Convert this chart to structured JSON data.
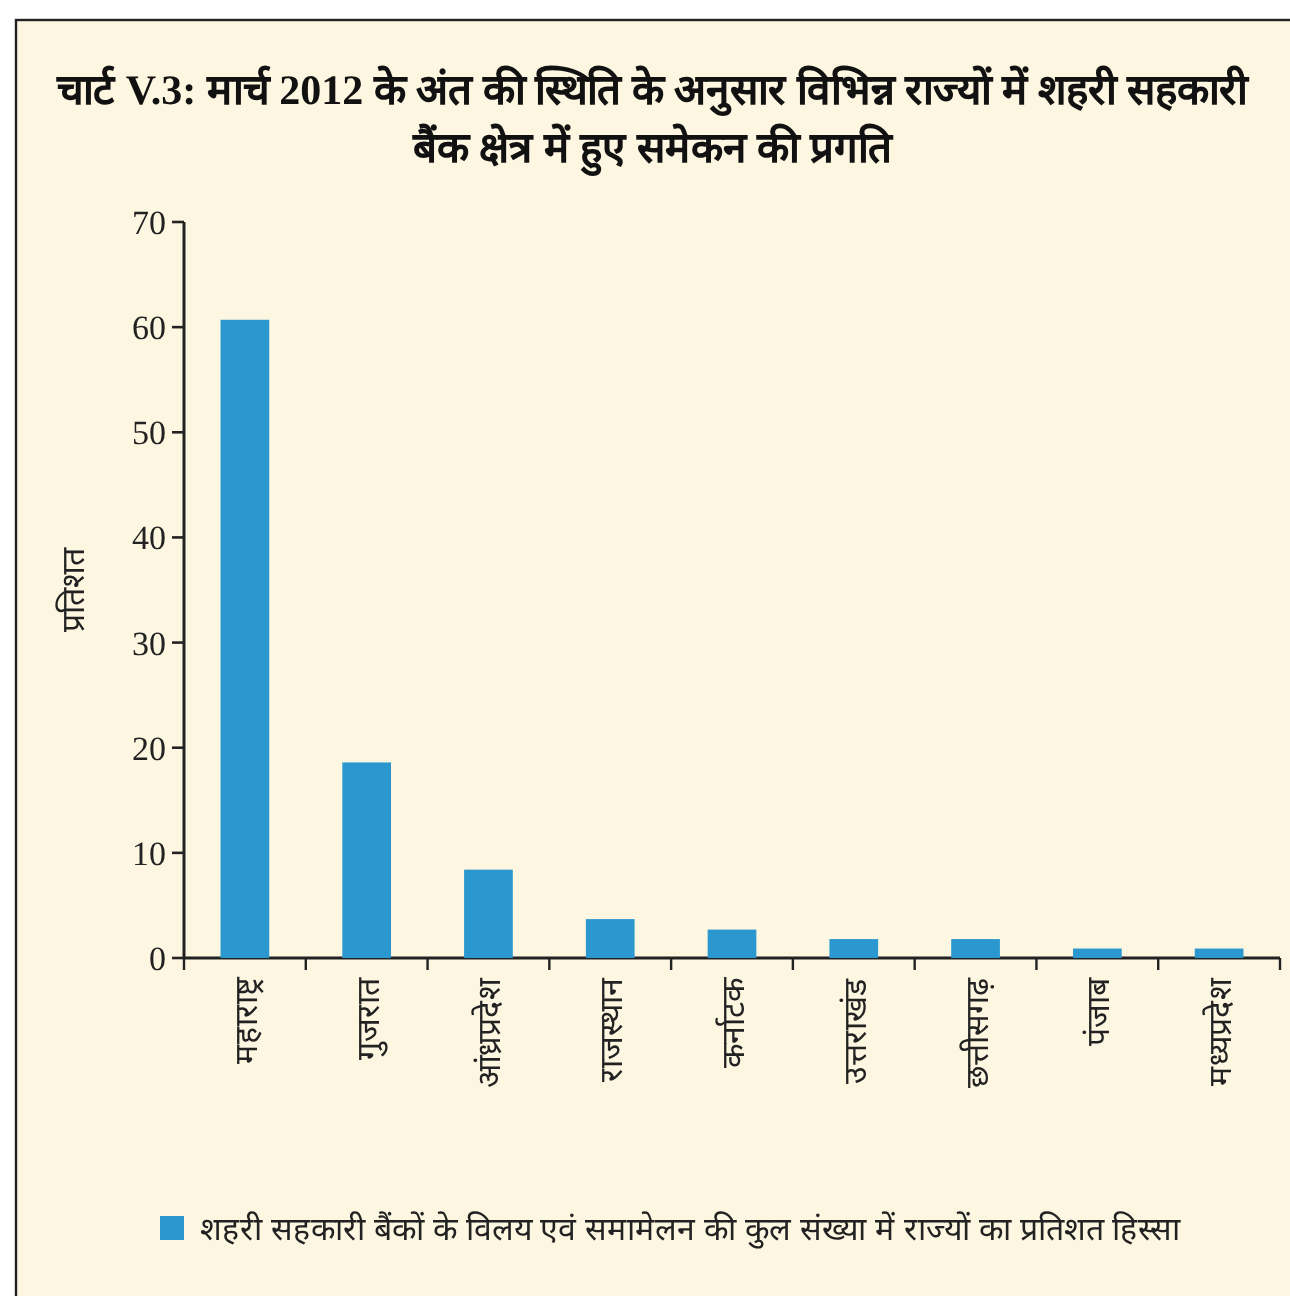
{
  "chart_data": {
    "type": "bar",
    "title": "चार्ट V.3: मार्च 2012 के अंत की स्थिति के अनुसार विभिन्न राज्यों में शहरी सहकारी बैंक क्षेत्र में हुए समेकन की प्रगति",
    "ylabel": "प्रतिशत",
    "categories": [
      "महाराष्ट्र",
      "गुजरात",
      "आंध्रप्रदेश",
      "राजस्थान",
      "कर्नाटक",
      "उत्तराखंड",
      "छत्तीसगढ़",
      "पंजाब",
      "मध्यप्रदेश"
    ],
    "series": [
      {
        "name": "शहरी सहकारी बैंकों के विलय एवं समामेलन की कुल संख्या में राज्यों का प्रतिशत हिस्सा",
        "color": "#2a97cf",
        "values": [
          60.7,
          18.6,
          8.4,
          3.7,
          2.7,
          1.8,
          1.8,
          0.9,
          0.9
        ]
      }
    ],
    "ylim": [
      0,
      70
    ],
    "yticks": [
      0,
      10,
      20,
      30,
      40,
      50,
      60,
      70
    ],
    "grid": false,
    "legend": "bottom"
  }
}
